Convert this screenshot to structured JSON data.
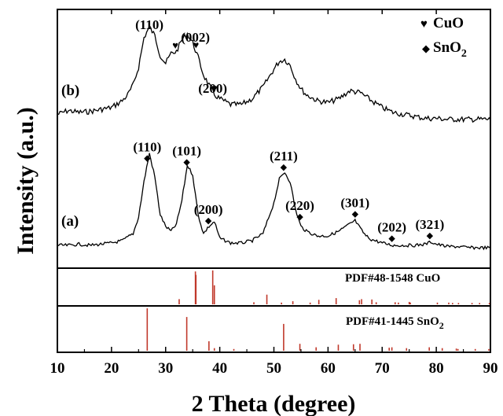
{
  "chart_data": {
    "type": "line",
    "xlabel": "2 Theta (degree)",
    "ylabel": "Intensity (a.u.)",
    "xlim": [
      10,
      90
    ],
    "xticks": [
      10,
      20,
      30,
      40,
      50,
      60,
      70,
      80,
      90
    ],
    "legend": {
      "placement": "top-right",
      "entries": [
        {
          "marker": "heart",
          "label": "CuO"
        },
        {
          "marker": "diamond",
          "label": "SnO2",
          "label_main": "SnO",
          "label_sub": "2"
        }
      ]
    },
    "series": [
      {
        "name": "(b)",
        "x": [
          10,
          12,
          14,
          16,
          18,
          20,
          22,
          23,
          24,
          25,
          26,
          27,
          28,
          29,
          30,
          31,
          32,
          33,
          34,
          35,
          36,
          37,
          38,
          39,
          40,
          42,
          44,
          46,
          48,
          50,
          51,
          52,
          53,
          54,
          55,
          56,
          58,
          60,
          62,
          64,
          66,
          68,
          70,
          72,
          74,
          76,
          78,
          80,
          82,
          84,
          86,
          88,
          90
        ],
        "y": [
          0.1,
          0.14,
          0.12,
          0.13,
          0.15,
          0.17,
          0.24,
          0.3,
          0.4,
          0.58,
          0.88,
          0.99,
          0.9,
          0.7,
          0.62,
          0.72,
          0.74,
          0.86,
          0.92,
          0.83,
          0.68,
          0.5,
          0.4,
          0.3,
          0.26,
          0.2,
          0.2,
          0.26,
          0.38,
          0.56,
          0.64,
          0.66,
          0.6,
          0.46,
          0.36,
          0.3,
          0.24,
          0.22,
          0.26,
          0.34,
          0.32,
          0.24,
          0.17,
          0.12,
          0.1,
          0.08,
          0.06,
          0.06,
          0.05,
          0.05,
          0.05,
          0.05,
          0.05
        ]
      },
      {
        "name": "(a)",
        "x": [
          10,
          12,
          14,
          16,
          18,
          20,
          22,
          24,
          25,
          26,
          27,
          28,
          29,
          30,
          31,
          32,
          33,
          34,
          35,
          36,
          37,
          38,
          39,
          40,
          42,
          44,
          46,
          48,
          50,
          51,
          52,
          53,
          54,
          55,
          56,
          58,
          60,
          62,
          64,
          65,
          66,
          67,
          68,
          70,
          72,
          74,
          76,
          78,
          79,
          80,
          82,
          84,
          86,
          88,
          90
        ],
        "y": [
          0.04,
          0.04,
          0.05,
          0.04,
          0.05,
          0.06,
          0.08,
          0.14,
          0.28,
          0.58,
          0.82,
          0.62,
          0.3,
          0.2,
          0.16,
          0.22,
          0.42,
          0.72,
          0.64,
          0.3,
          0.14,
          0.2,
          0.24,
          0.1,
          0.06,
          0.06,
          0.08,
          0.14,
          0.4,
          0.6,
          0.66,
          0.58,
          0.34,
          0.2,
          0.16,
          0.12,
          0.12,
          0.16,
          0.22,
          0.25,
          0.18,
          0.12,
          0.09,
          0.06,
          0.04,
          0.04,
          0.04,
          0.05,
          0.07,
          0.05,
          0.03,
          0.03,
          0.02,
          0.02,
          0.02
        ]
      }
    ],
    "annotations_b": [
      {
        "text": "(110)",
        "x": 27,
        "marker": null
      },
      {
        "text": "(002)",
        "x": 35.5,
        "marker": null
      },
      {
        "text": "(200)",
        "x": 38.7,
        "marker": null
      },
      {
        "marker": "heart",
        "x": 31.8
      },
      {
        "marker": "heart",
        "x": 35.6
      },
      {
        "marker": "heart",
        "x": 39.0
      }
    ],
    "annotations_a": [
      {
        "text": "(110)",
        "x": 26.6,
        "marker": "diamond"
      },
      {
        "text": "(101)",
        "x": 33.9,
        "marker": "diamond"
      },
      {
        "text": "(200)",
        "x": 37.9,
        "marker": "diamond"
      },
      {
        "text": "(211)",
        "x": 51.8,
        "marker": "diamond"
      },
      {
        "text": "(220)",
        "x": 54.8,
        "marker": "diamond"
      },
      {
        "text": "(301)",
        "x": 65.0,
        "marker": "diamond"
      },
      {
        "text": "(202)",
        "x": 71.8,
        "marker": "diamond"
      },
      {
        "text": "(321)",
        "x": 78.8,
        "marker": "diamond"
      }
    ],
    "reference_panels": [
      {
        "label": "PDF#48-1548 CuO",
        "color": "#c0392b",
        "lines": [
          {
            "x": 32.5,
            "h": 0.15
          },
          {
            "x": 35.5,
            "h": 0.95
          },
          {
            "x": 35.6,
            "h": 0.85
          },
          {
            "x": 38.7,
            "h": 0.98
          },
          {
            "x": 39.0,
            "h": 0.55
          },
          {
            "x": 46.3,
            "h": 0.06
          },
          {
            "x": 48.7,
            "h": 0.28
          },
          {
            "x": 51.4,
            "h": 0.05
          },
          {
            "x": 53.5,
            "h": 0.09
          },
          {
            "x": 56.7,
            "h": 0.05
          },
          {
            "x": 58.3,
            "h": 0.13
          },
          {
            "x": 61.5,
            "h": 0.18
          },
          {
            "x": 65.8,
            "h": 0.12
          },
          {
            "x": 66.2,
            "h": 0.15
          },
          {
            "x": 68.1,
            "h": 0.14
          },
          {
            "x": 68.9,
            "h": 0.06
          },
          {
            "x": 72.4,
            "h": 0.06
          },
          {
            "x": 73.0,
            "h": 0.05
          },
          {
            "x": 75.0,
            "h": 0.07
          },
          {
            "x": 75.2,
            "h": 0.05
          },
          {
            "x": 80.2,
            "h": 0.05
          },
          {
            "x": 82.3,
            "h": 0.05
          },
          {
            "x": 83.0,
            "h": 0.04
          },
          {
            "x": 84.1,
            "h": 0.04
          },
          {
            "x": 86.6,
            "h": 0.04
          },
          {
            "x": 88.0,
            "h": 0.04
          },
          {
            "x": 89.8,
            "h": 0.04
          }
        ]
      },
      {
        "label": "PDF#41-1445 SnO2",
        "label_main": "PDF#41-1445 SnO",
        "label_sub": "2",
        "color": "#c0392b",
        "lines": [
          {
            "x": 26.6,
            "h": 0.98
          },
          {
            "x": 33.9,
            "h": 0.78
          },
          {
            "x": 38.0,
            "h": 0.22
          },
          {
            "x": 39.0,
            "h": 0.06
          },
          {
            "x": 42.6,
            "h": 0.04
          },
          {
            "x": 51.8,
            "h": 0.62
          },
          {
            "x": 54.8,
            "h": 0.16
          },
          {
            "x": 57.8,
            "h": 0.08
          },
          {
            "x": 61.9,
            "h": 0.14
          },
          {
            "x": 64.7,
            "h": 0.15
          },
          {
            "x": 65.9,
            "h": 0.16
          },
          {
            "x": 71.3,
            "h": 0.07
          },
          {
            "x": 71.8,
            "h": 0.08
          },
          {
            "x": 74.5,
            "h": 0.06
          },
          {
            "x": 78.7,
            "h": 0.08
          },
          {
            "x": 81.1,
            "h": 0.06
          },
          {
            "x": 83.7,
            "h": 0.05
          },
          {
            "x": 84.0,
            "h": 0.04
          },
          {
            "x": 87.2,
            "h": 0.04
          },
          {
            "x": 89.7,
            "h": 0.04
          }
        ]
      }
    ]
  },
  "colors": {
    "curve": "#000000",
    "reference": "#c0392b"
  }
}
